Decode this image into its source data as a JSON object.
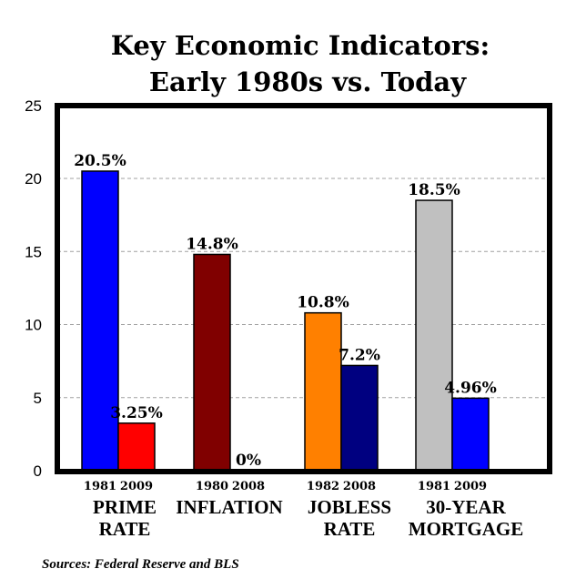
{
  "chart_data": {
    "type": "bar",
    "title_lines": [
      "Key Economic Indicators:",
      "Early 1980s vs. Today"
    ],
    "ylim": [
      0,
      25
    ],
    "yticks": [
      0,
      5,
      10,
      15,
      20,
      25
    ],
    "grid": "horizontal dashed",
    "groups": [
      {
        "label_lines": [
          "PRIME",
          "RATE"
        ],
        "bars": [
          {
            "year": "1981",
            "value": 20.5,
            "label": "20.5%",
            "color": "#0000ff"
          },
          {
            "year": "2009",
            "value": 3.25,
            "label": "3.25%",
            "color": "#ff0000"
          }
        ]
      },
      {
        "label_lines": [
          "INFLATION"
        ],
        "bars": [
          {
            "year": "1980",
            "value": 14.8,
            "label": "14.8%",
            "color": "#800000"
          },
          {
            "year": "2008",
            "value": 0,
            "label": "0%",
            "color": "#000080"
          }
        ]
      },
      {
        "label_lines": [
          "JOBLESS",
          "RATE"
        ],
        "bars": [
          {
            "year": "1982",
            "value": 10.8,
            "label": "10.8%",
            "color": "#ff8000"
          },
          {
            "year": "2008",
            "value": 7.2,
            "label": "7.2%",
            "color": "#000080"
          }
        ]
      },
      {
        "label_lines": [
          "30-YEAR",
          "MORTGAGE"
        ],
        "bars": [
          {
            "year": "1981",
            "value": 18.5,
            "label": "18.5%",
            "color": "#c0c0c0"
          },
          {
            "year": "2009",
            "value": 4.96,
            "label": "4.96%",
            "color": "#0000ff"
          }
        ]
      }
    ]
  },
  "source_note": "Sources: Federal Reserve and BLS"
}
